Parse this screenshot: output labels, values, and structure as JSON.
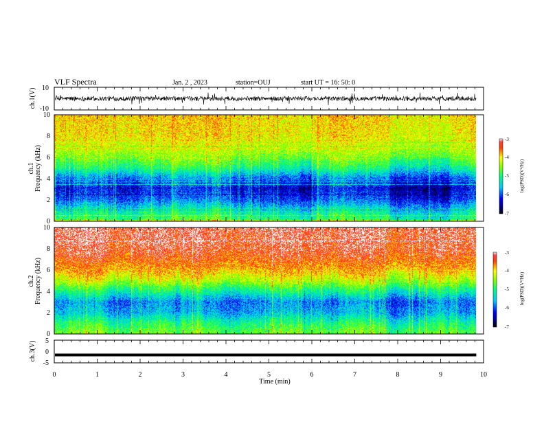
{
  "header": {
    "title": "VLF Spectra",
    "date": "Jan. 2 , 2023",
    "station": "station=OUJ",
    "start_ut": "start UT =  16: 50: 0"
  },
  "chart_data": [
    {
      "type": "line",
      "name": "ch1-waveform",
      "ylabel": "ch.1(V)",
      "ylim": [
        -10,
        10
      ],
      "yticks": [
        "10",
        "-10"
      ],
      "xlim": [
        0,
        10
      ],
      "data_xrange": [
        0,
        9.83
      ],
      "baseline": 0,
      "typical_amplitude": 2,
      "spike_amplitude": 6
    },
    {
      "type": "heatmap",
      "name": "ch1-spectrogram",
      "ylabel_line1": "ch.1",
      "ylabel_line2": "Frequency (kHz)",
      "ylim": [
        0,
        10
      ],
      "yticks": [
        "0",
        "2",
        "4",
        "6",
        "8",
        "10"
      ],
      "xlim": [
        0,
        10
      ],
      "data_xrange": [
        0,
        9.83
      ],
      "colorbar": {
        "label": "log(PSD)(V²/Hz)",
        "range": [
          -7,
          -3
        ],
        "ticks": [
          "-3",
          "-4",
          "-5",
          "-6",
          "-7"
        ]
      },
      "profile_freq_khz": [
        0,
        1,
        2,
        3,
        4,
        5,
        6,
        7,
        8,
        10
      ],
      "profile_logpsd": [
        -4.8,
        -5.2,
        -5.9,
        -6.2,
        -5.8,
        -5.0,
        -4.5,
        -4.2,
        -4.0,
        -3.9
      ]
    },
    {
      "type": "heatmap",
      "name": "ch2-spectrogram",
      "ylabel_line1": "ch.2",
      "ylabel_line2": "Frequency (kHz)",
      "ylim": [
        0,
        10
      ],
      "yticks": [
        "0",
        "2",
        "4",
        "6",
        "8",
        "10"
      ],
      "xlim": [
        0,
        10
      ],
      "data_xrange": [
        0,
        9.83
      ],
      "colorbar": {
        "label": "log(PSD)(V²/Hz)",
        "range": [
          -7,
          -3
        ],
        "ticks": [
          "-3",
          "-4",
          "-5",
          "-6",
          "-7"
        ]
      },
      "profile_freq_khz": [
        0,
        1,
        2,
        3,
        4,
        5,
        6,
        7,
        8,
        10
      ],
      "profile_logpsd": [
        -4.6,
        -5.0,
        -5.6,
        -5.8,
        -5.1,
        -4.3,
        -3.8,
        -3.5,
        -3.3,
        -3.2
      ]
    },
    {
      "type": "line",
      "name": "ch3-waveform",
      "ylabel": "ch.3(V)",
      "ylim": [
        -5,
        5
      ],
      "yticks": [
        "5",
        "0",
        "-5"
      ],
      "xlim": [
        0,
        10
      ],
      "data_xrange": [
        0,
        9.83
      ],
      "level": -1.5,
      "xlabel": "Time (min)",
      "xticks": [
        "0",
        "1",
        "2",
        "3",
        "4",
        "5",
        "6",
        "7",
        "8",
        "9",
        "10"
      ]
    }
  ]
}
